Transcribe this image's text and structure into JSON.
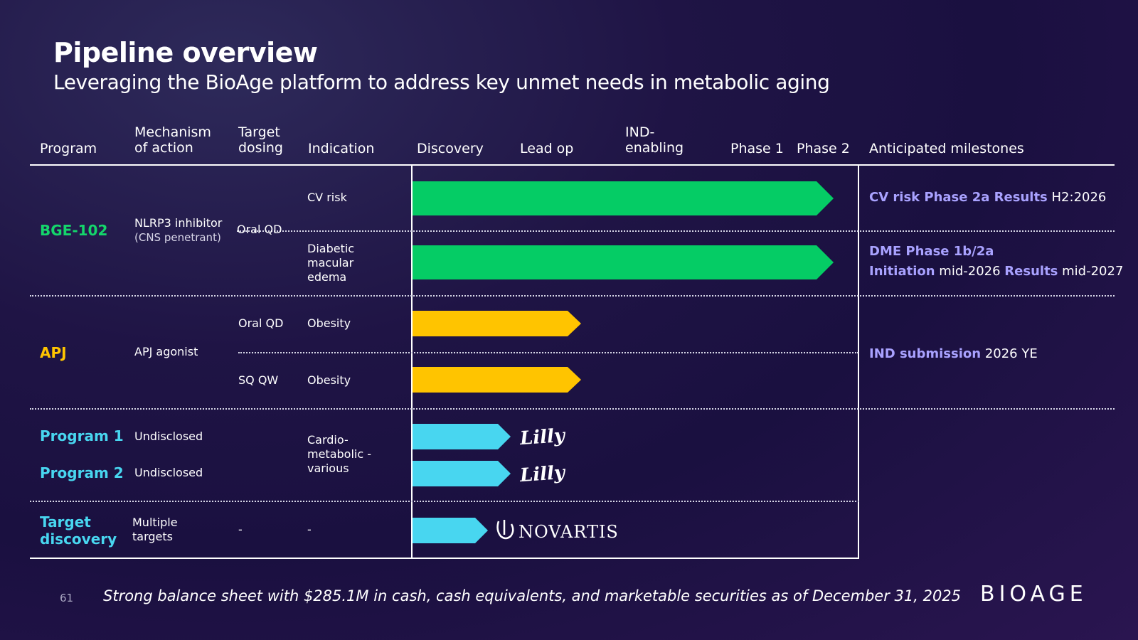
{
  "title": "Pipeline overview",
  "subtitle": "Leveraging the BioAge platform to address key unmet needs in metabolic aging",
  "headers": {
    "program": "Program",
    "moa": "Mechanism of action",
    "dosing": "Target dosing",
    "indication": "Indication",
    "discovery": "Discovery",
    "leadop": "Lead op",
    "ind": "IND- enabling",
    "phase1": "Phase 1",
    "phase2": "Phase 2",
    "milestones": "Anticipated milestones"
  },
  "rows": {
    "bge": {
      "program": "BGE-102",
      "moa": "NLRP3 inhibitor",
      "moa_note": "(CNS penetrant)",
      "dosing": "Oral QD",
      "ind1": "CV risk",
      "ind2": "Diabetic macular edema",
      "ms1_bold": "CV risk Phase 2a Results",
      "ms1_rest": "H2:2026",
      "ms2_line1": "DME Phase 1b/2a",
      "ms2_b1": "Initiation",
      "ms2_t1": "mid-2026",
      "ms2_b2": "Results",
      "ms2_t2": "mid-2027"
    },
    "apj": {
      "program": "APJ",
      "moa": "APJ agonist",
      "dosing1": "Oral QD",
      "ind1": "Obesity",
      "dosing2": "SQ QW",
      "ind2": "Obesity",
      "ms_bold": "IND submission",
      "ms_rest": "2026 YE"
    },
    "p1": {
      "program": "Program 1",
      "moa": "Undisclosed",
      "partner": "Lilly"
    },
    "p2": {
      "program": "Program 2",
      "moa": "Undisclosed",
      "partner": "Lilly"
    },
    "cardio": {
      "indication": "Cardio- metabolic - various"
    },
    "td": {
      "program": "Target discovery",
      "moa": "Multiple targets",
      "dosing": "-",
      "indication": "-",
      "partner": "NOVARTIS"
    }
  },
  "footer": {
    "page": "61",
    "note": "Strong balance sheet with $285.1M in cash, cash equivalents, and marketable securities as of December 31, 2025",
    "logo": "BIOAGE"
  },
  "colors": {
    "green": "#05cc65",
    "yellow": "#ffc400",
    "cyan": "#48d6f0",
    "milestone_accent": "#a9a2ff"
  },
  "stages": [
    "Discovery",
    "Lead op",
    "IND-enabling",
    "Phase 1",
    "Phase 2"
  ],
  "progress": [
    {
      "program": "BGE-102",
      "indication": "CV risk",
      "stage": "Phase 2"
    },
    {
      "program": "BGE-102",
      "indication": "Diabetic macular edema",
      "stage": "Phase 2"
    },
    {
      "program": "APJ",
      "indication": "Obesity (Oral QD)",
      "stage": "Lead op"
    },
    {
      "program": "APJ",
      "indication": "Obesity (SQ QW)",
      "stage": "Lead op"
    },
    {
      "program": "Program 1",
      "stage": "Discovery"
    },
    {
      "program": "Program 2",
      "stage": "Discovery"
    },
    {
      "program": "Target discovery",
      "stage": "Discovery"
    }
  ]
}
